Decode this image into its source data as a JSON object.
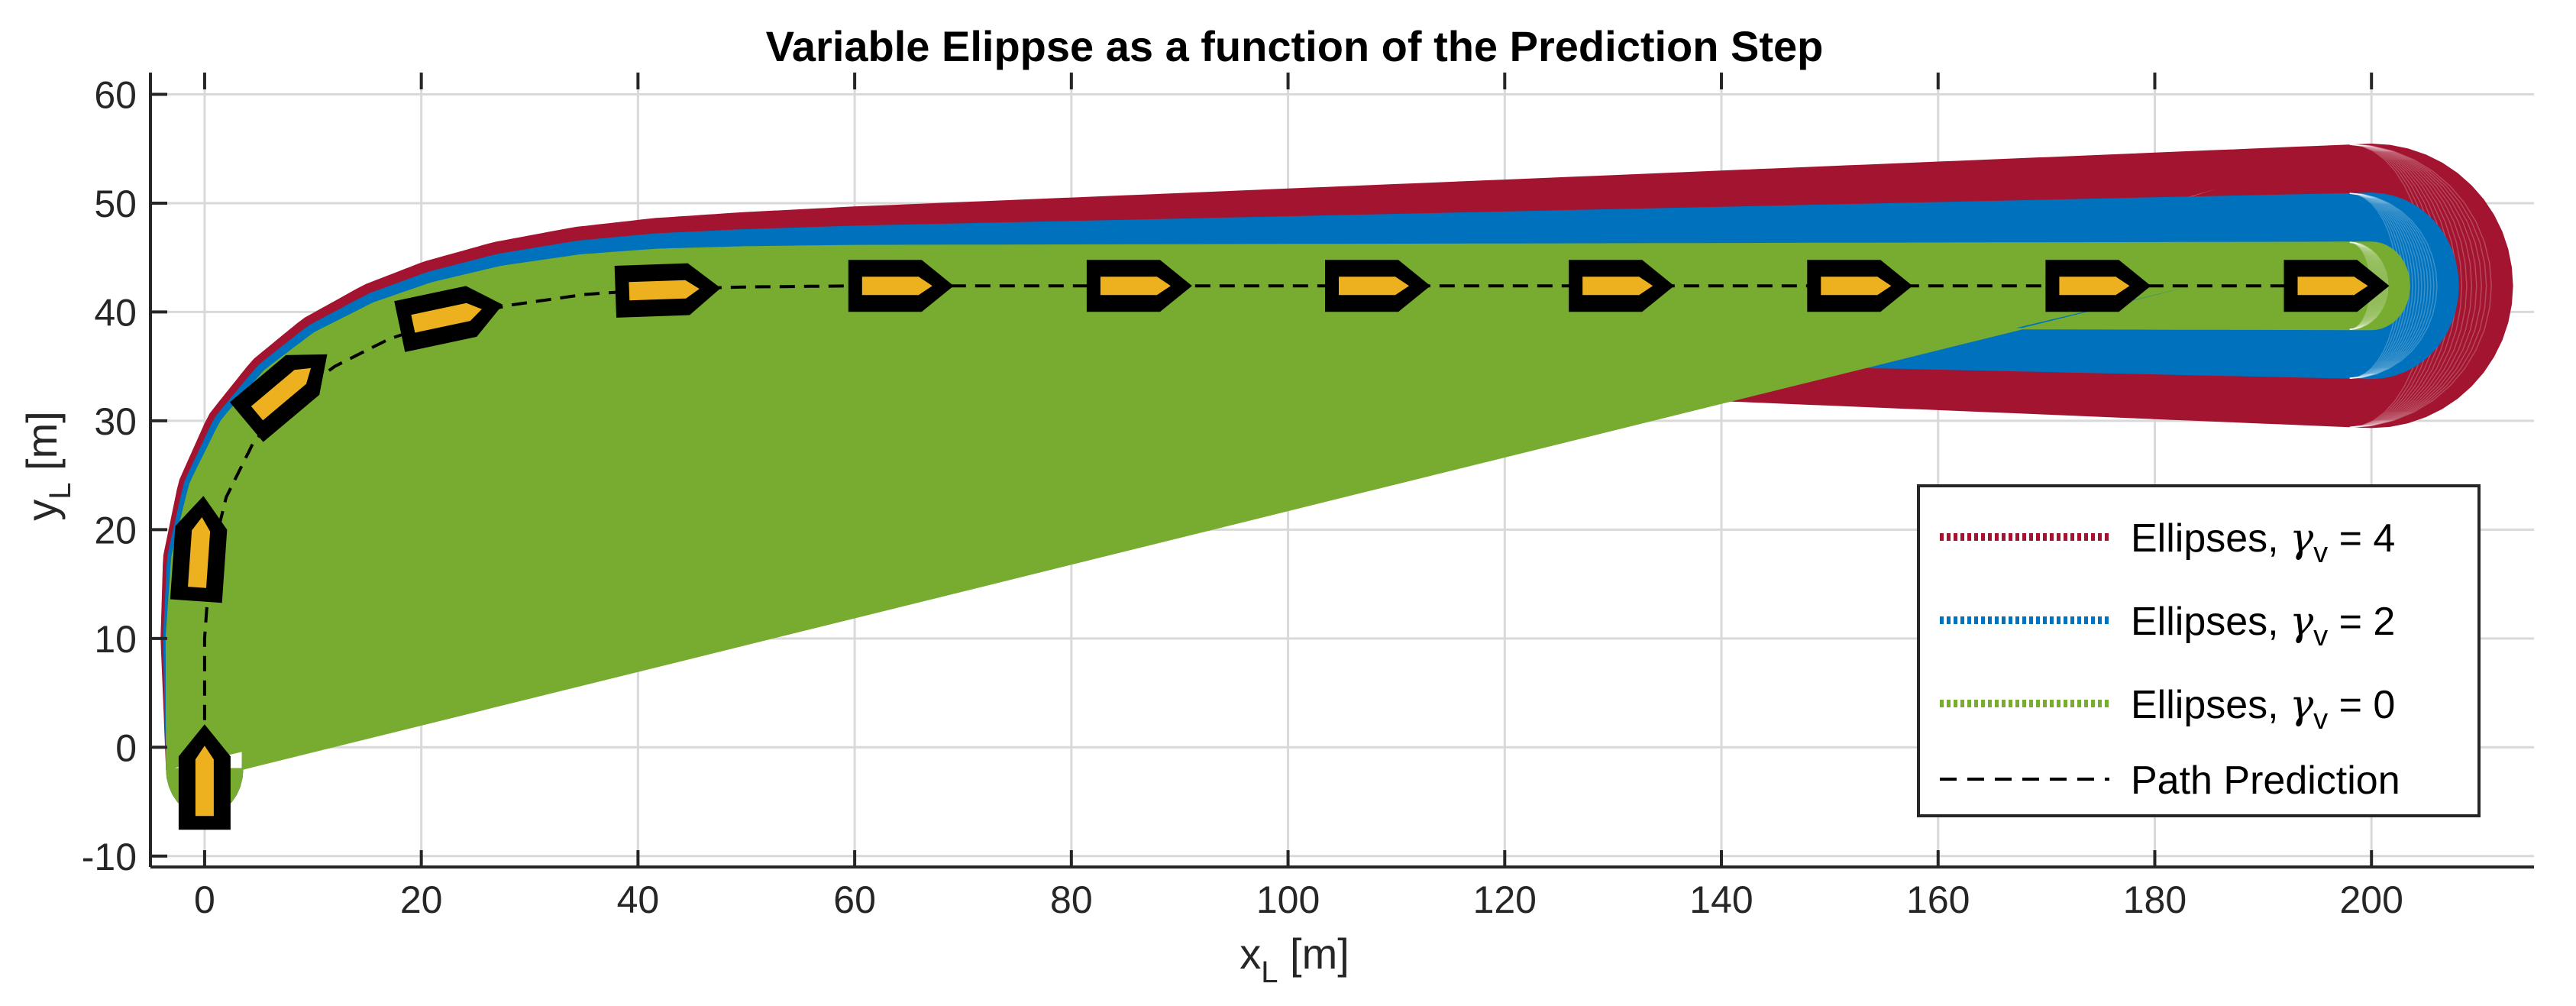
{
  "chart_data": {
    "type": "line",
    "title": "Variable Elippse as a function of the Prediction Step",
    "xlabel": {
      "main": "x",
      "sub": "L",
      "unit": " [m]"
    },
    "ylabel": {
      "main": "y",
      "sub": "L",
      "unit": " [m]"
    },
    "xlim": [
      -5,
      215
    ],
    "ylim": [
      -11,
      62
    ],
    "xticks": [
      0,
      20,
      40,
      60,
      80,
      100,
      120,
      140,
      160,
      180,
      200
    ],
    "xtick_labels": [
      "0",
      "20",
      "40",
      "60",
      "80",
      "100",
      "120",
      "140",
      "160",
      "180",
      "200"
    ],
    "yticks": [
      -10,
      0,
      10,
      20,
      30,
      40,
      50,
      60
    ],
    "ytick_labels": [
      "-10",
      "0",
      "10",
      "20",
      "30",
      "40",
      "50",
      "60"
    ],
    "grid": true,
    "path": {
      "x": [
        0,
        0,
        0.5,
        2,
        4.5,
        8,
        12,
        17,
        22,
        28,
        35,
        42,
        50,
        60,
        80,
        100,
        120,
        140,
        160,
        180,
        200
      ],
      "y": [
        -2,
        10,
        17,
        23,
        28,
        32,
        35,
        37.5,
        39.2,
        40.6,
        41.6,
        42.1,
        42.3,
        42.4,
        42.4,
        42.4,
        42.4,
        42.4,
        42.4,
        42.4,
        42.4
      ]
    },
    "vehicle_poses": [
      {
        "x": 0,
        "y": -3.5,
        "heading_deg": 90
      },
      {
        "x": -0.5,
        "y": 17.5,
        "heading_deg": 86
      },
      {
        "x": 7,
        "y": 32.5,
        "heading_deg": 40
      },
      {
        "x": 22,
        "y": 39.5,
        "heading_deg": 12
      },
      {
        "x": 42,
        "y": 42,
        "heading_deg": 2
      },
      {
        "x": 63.5,
        "y": 42.4,
        "heading_deg": 0
      },
      {
        "x": 85.5,
        "y": 42.4,
        "heading_deg": 0
      },
      {
        "x": 107.5,
        "y": 42.4,
        "heading_deg": 0
      },
      {
        "x": 130,
        "y": 42.4,
        "heading_deg": 0
      },
      {
        "x": 152,
        "y": 42.4,
        "heading_deg": 0
      },
      {
        "x": 174,
        "y": 42.4,
        "heading_deg": 0
      },
      {
        "x": 196,
        "y": 42.4,
        "heading_deg": 0
      }
    ],
    "series": [
      {
        "name": "Ellipses, γ_v = 4",
        "gamma_v": 4,
        "half_width_start": 3.5,
        "half_width_end": 13,
        "x_overhang": 13,
        "color": "#A2142F"
      },
      {
        "name": "Ellipses, γ_v = 2",
        "gamma_v": 2,
        "half_width_start": 3.5,
        "half_width_end": 8.5,
        "x_overhang": 8,
        "color": "#0072BD"
      },
      {
        "name": "Ellipses, γ_v = 0",
        "gamma_v": 0,
        "half_width_start": 3.5,
        "half_width_end": 4,
        "x_overhang": 3.5,
        "color": "#77AC30"
      }
    ],
    "legend": {
      "position": "bottom-right",
      "entries": [
        {
          "label": "Ellipses, ",
          "symbol": "γ",
          "sub": "v",
          "value": " = 4",
          "style": "dotted",
          "color": "#A2142F"
        },
        {
          "label": "Ellipses, ",
          "symbol": "γ",
          "sub": "v",
          "value": " = 2",
          "style": "dotted",
          "color": "#0072BD"
        },
        {
          "label": "Ellipses, ",
          "symbol": "γ",
          "sub": "v",
          "value": " = 0",
          "style": "dotted",
          "color": "#77AC30"
        },
        {
          "label": "Path Prediction",
          "symbol": "",
          "sub": "",
          "value": "",
          "style": "dashed",
          "color": "#000000"
        }
      ]
    },
    "vehicle_colors": {
      "body": "#EDB120",
      "outline": "#000000"
    }
  }
}
